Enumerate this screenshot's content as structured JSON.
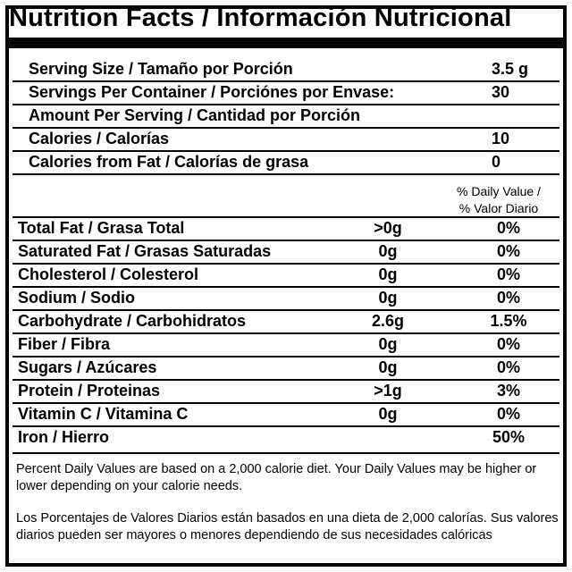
{
  "title": "Nutrition Facts / Información Nutricional",
  "top_rows": [
    {
      "label": "Serving Size / Tamaño por Porción",
      "value": "3.5 g"
    },
    {
      "label": "Servings Per Container / Porciónes por Envase:",
      "value": "30"
    },
    {
      "label": "Amount Per Serving / Cantidad por Porción",
      "value": ""
    },
    {
      "label": "Calories / Calorías",
      "value": "10"
    },
    {
      "label": "Calories from Fat / Calorías de grasa",
      "value": "0"
    }
  ],
  "dv_header": {
    "line1": "% Daily Value /",
    "line2": "% Valor Diario"
  },
  "nutrients": [
    {
      "label": "Total Fat / Grasa Total",
      "amount": ">0g",
      "dv": "0%"
    },
    {
      "label": "Saturated Fat / Grasas Saturadas",
      "amount": "0g",
      "dv": "0%"
    },
    {
      "label": "Cholesterol / Colesterol",
      "amount": "0g",
      "dv": "0%"
    },
    {
      "label": "Sodium / Sodio",
      "amount": "0g",
      "dv": "0%"
    },
    {
      "label": "Carbohydrate / Carbohidratos",
      "amount": "2.6g",
      "dv": "1.5%"
    },
    {
      "label": "Fiber / Fibra",
      "amount": "0g",
      "dv": "0%"
    },
    {
      "label": "Sugars / Azúcares",
      "amount": "0g",
      "dv": "0%"
    },
    {
      "label": "Protein / Proteinas",
      "amount": ">1g",
      "dv": "3%"
    },
    {
      "label": "Vitamin C / Vitamina C",
      "amount": "0g",
      "dv": "0%"
    },
    {
      "label": "Iron / Hierro",
      "amount": "",
      "dv": "50%"
    }
  ],
  "footnote_en": "Percent Daily Values are based on a 2,000 calorie diet. Your Daily Values may be higher or lower depending on your calorie needs.",
  "footnote_es": "Los Porcentajes de Valores Diarios están basados en una dieta de 2,000 calorías. Sus valores diarios pueden ser mayores o menores dependiendo de sus necesidades calóricas"
}
